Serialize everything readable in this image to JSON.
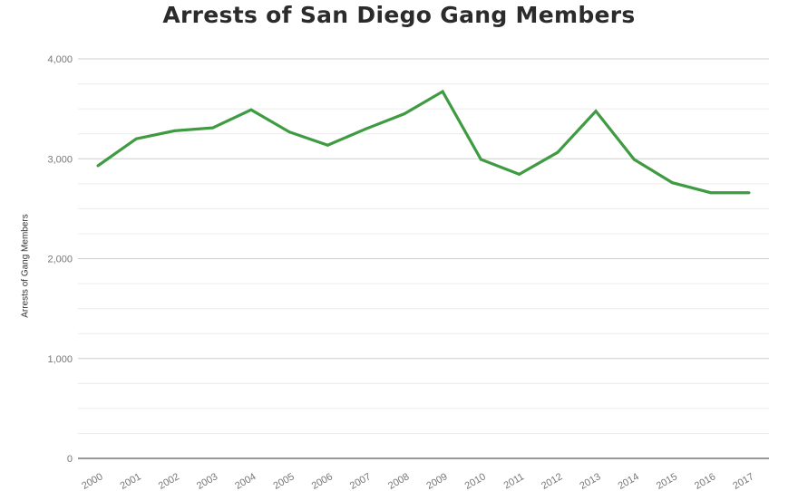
{
  "chart_data": {
    "type": "line",
    "title": "Arrests of San Diego Gang Members",
    "xlabel": "",
    "ylabel": "Arrests of Gang Members",
    "ylim": [
      0,
      4000
    ],
    "yticks": [
      "0",
      "1,000",
      "2,000",
      "3,000",
      "4,000"
    ],
    "ytick_values": [
      0,
      1000,
      2000,
      3000,
      4000
    ],
    "minor_grid_step": 250,
    "grid": true,
    "categories": [
      "2000",
      "2001",
      "2002",
      "2003",
      "2004",
      "2005",
      "2006",
      "2007",
      "2008",
      "2009",
      "2010",
      "2011",
      "2012",
      "2013",
      "2014",
      "2015",
      "2016",
      "2017"
    ],
    "series": [
      {
        "name": "Arrests of Gang Members",
        "color": "#3f9b41",
        "values": [
          2930,
          3200,
          3280,
          3310,
          3490,
          3268,
          3136,
          3300,
          3450,
          3673,
          2993,
          2845,
          3063,
          3477,
          2993,
          2760,
          2660,
          2660
        ]
      }
    ]
  }
}
